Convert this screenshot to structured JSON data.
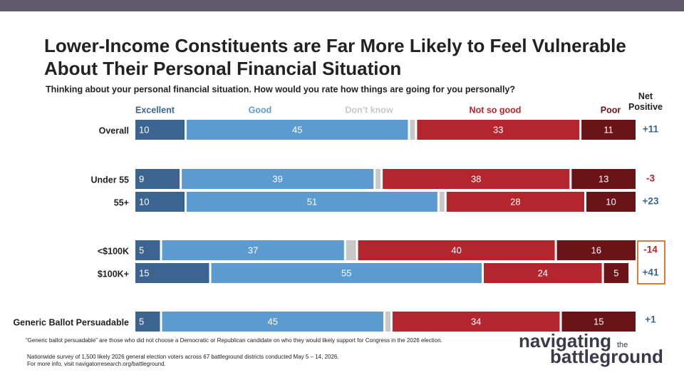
{
  "chart_data": {
    "type": "stacked-bar",
    "title": "Lower-Income Constituents are Far More Likely to Feel Vulnerable About Their Personal Financial Situation",
    "subtitle": "Thinking about your personal financial situation. How would you rate how things are going for you personally?",
    "categories": [
      "Overall",
      "Under 55",
      "55+",
      "<$100K",
      "$100K+",
      "Generic Ballot Persuadable"
    ],
    "series": [
      {
        "name": "Excellent",
        "color": "#3b6590",
        "values": [
          10,
          9,
          10,
          5,
          15,
          5
        ]
      },
      {
        "name": "Good",
        "color": "#5b9bd0",
        "values": [
          45,
          39,
          51,
          37,
          55,
          45
        ]
      },
      {
        "name": "Don’t know",
        "color": "#c8c8c8",
        "values": [
          1,
          1,
          1,
          2,
          0,
          1
        ]
      },
      {
        "name": "Not so good",
        "color": "#b3262d",
        "values": [
          33,
          38,
          28,
          40,
          24,
          34
        ]
      },
      {
        "name": "Poor",
        "color": "#6b1418",
        "values": [
          11,
          13,
          10,
          16,
          5,
          15
        ]
      }
    ],
    "net_positive": {
      "title": "Net Positive",
      "values": [
        11,
        -3,
        23,
        -14,
        41,
        1
      ],
      "value_labels": [
        "+11",
        "-3",
        "+23",
        "-14",
        "+41",
        "+1"
      ]
    },
    "footnotes": [
      "“Generic ballot persuadable” are those who did not choose a Democratic or Republican candidate on who they would likely support for Congress in the 2026 election.",
      "Nationwide survey of 1,500 likely 2026 general election voters across 67 battleground districts conducted May 5 – 14, 2026.",
      "For more info, visit navigatorresearch.org/battleground."
    ],
    "logo": {
      "top": "navigating",
      "small": "the",
      "bottom": "battleground"
    }
  }
}
